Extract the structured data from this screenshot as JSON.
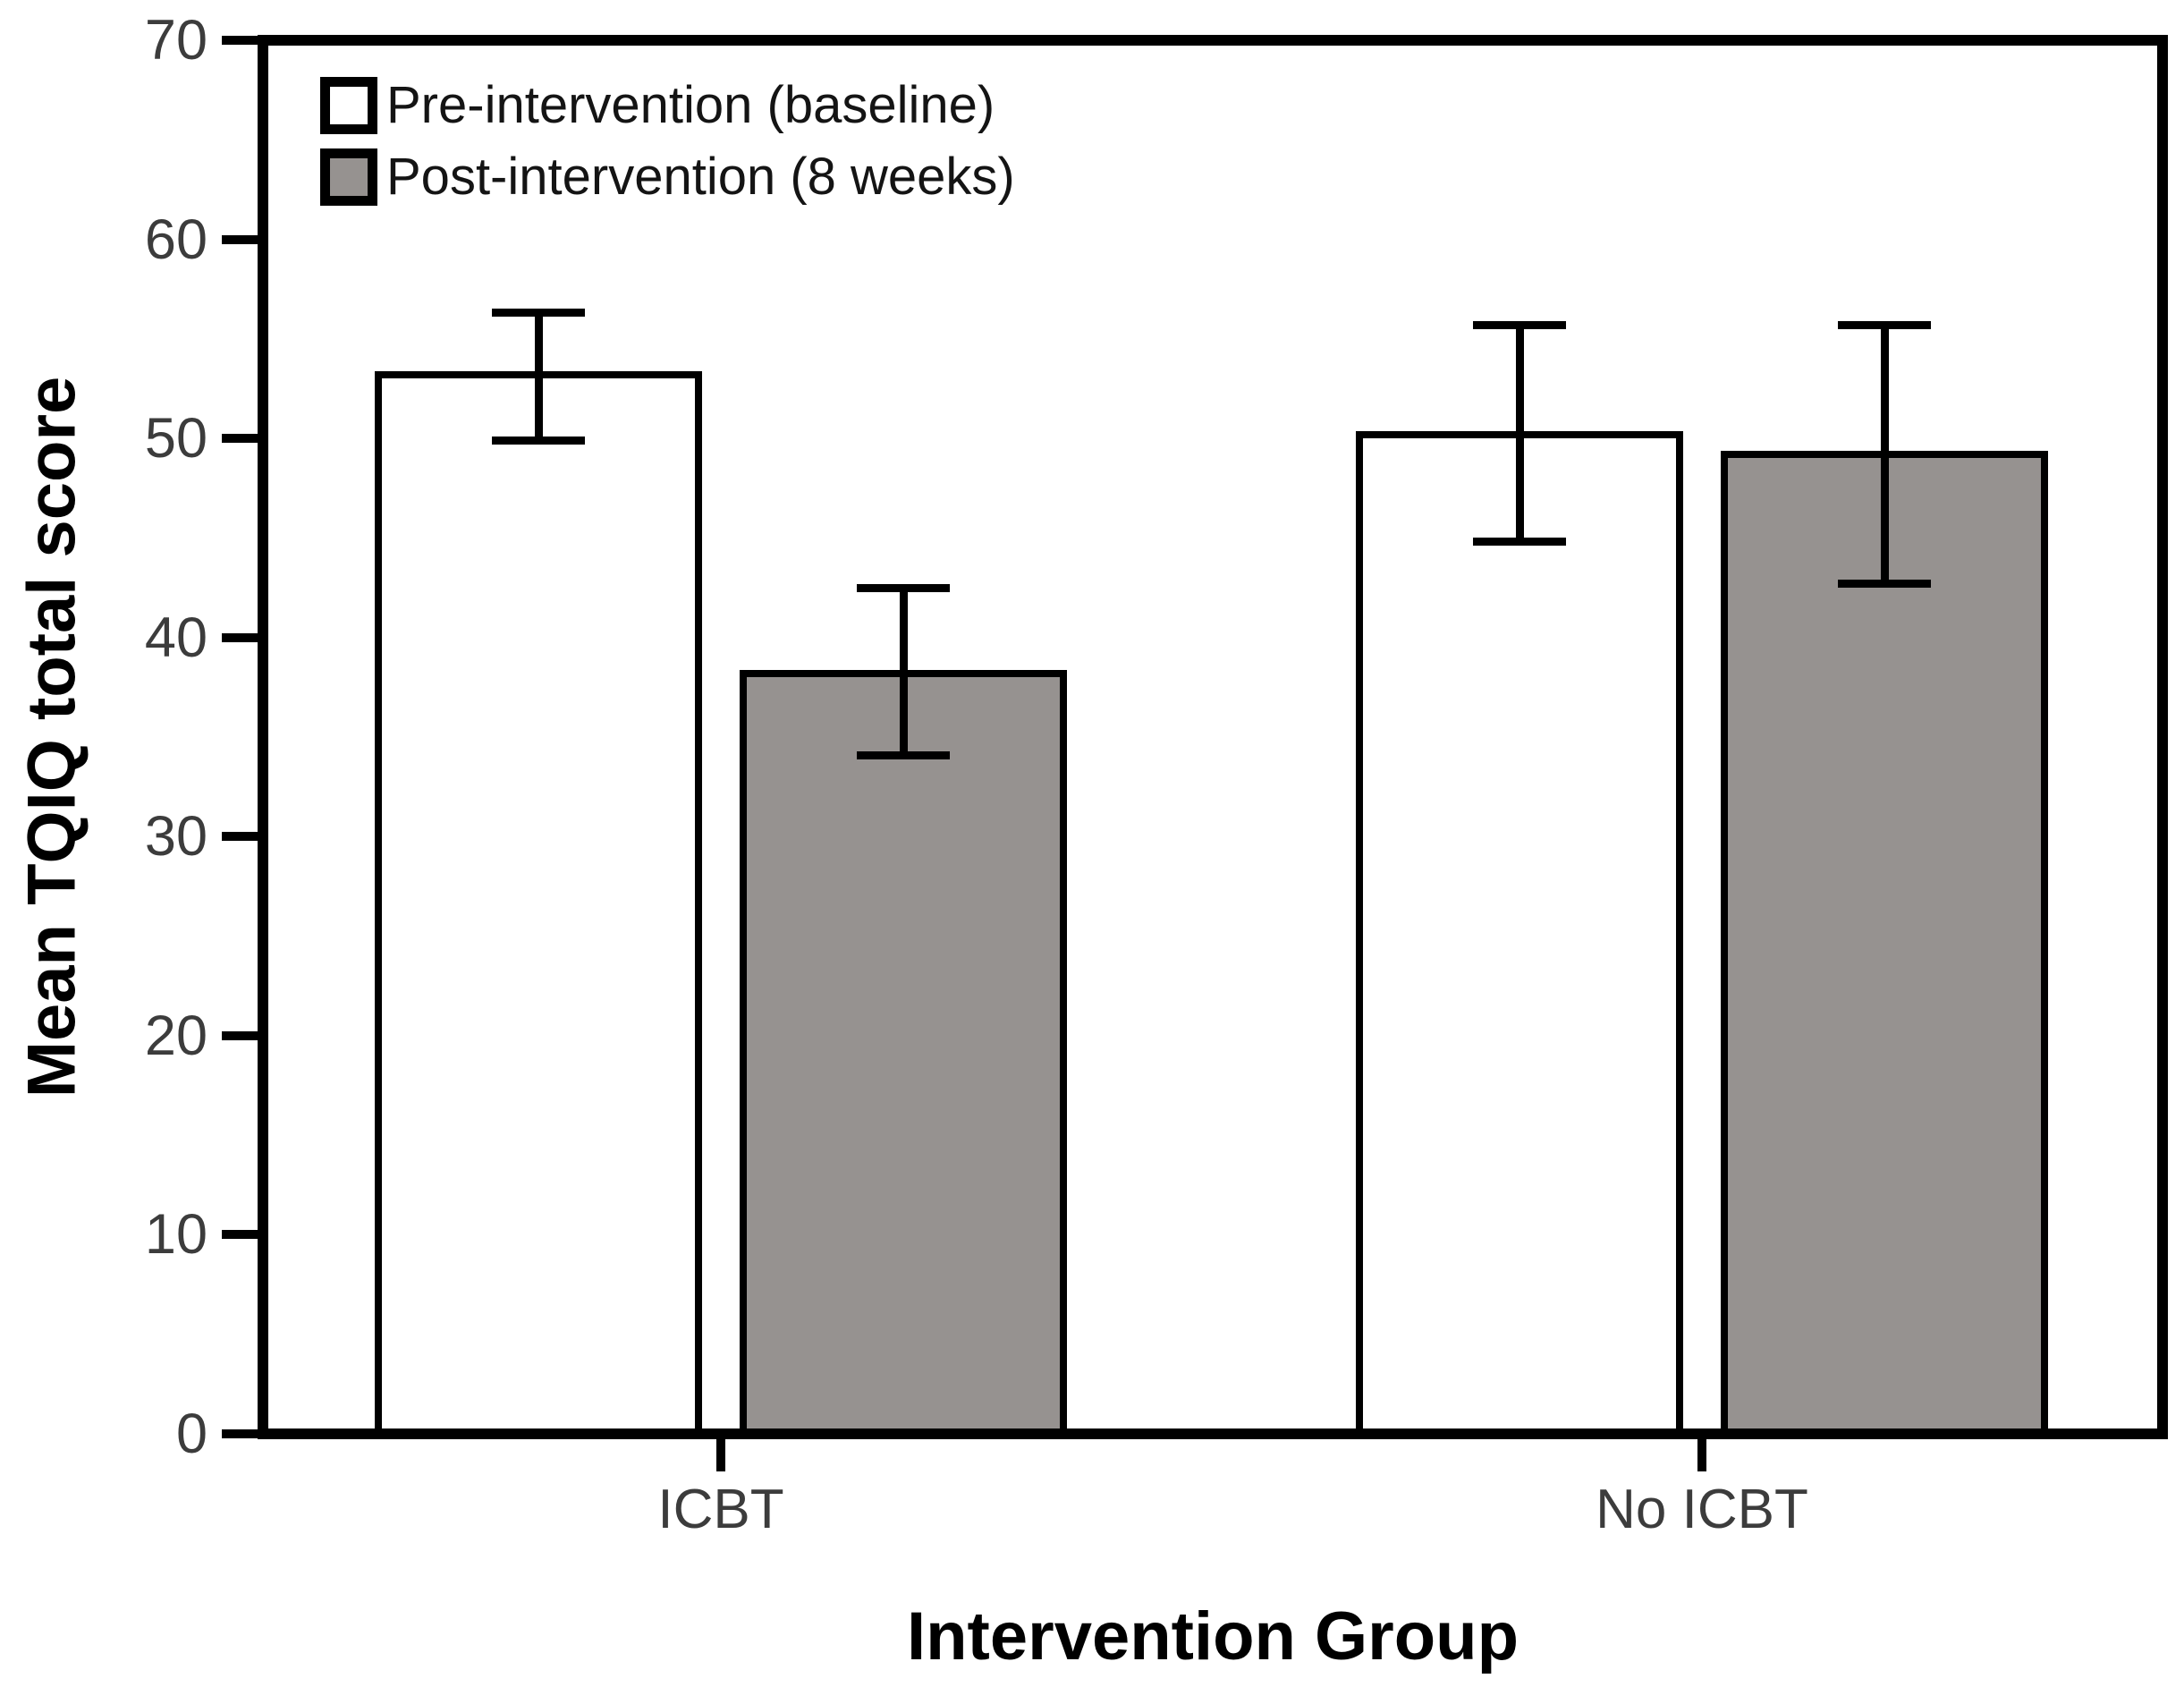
{
  "chart_data": {
    "type": "bar",
    "title": "",
    "categories": [
      "ICBT",
      "No ICBT"
    ],
    "series": [
      {
        "name": "Pre-intervention (baseline)",
        "values": [
          53.2,
          50.2
        ],
        "error_upper": [
          56.3,
          55.7
        ],
        "error_lower": [
          49.9,
          44.8
        ],
        "fill": "#ffffff"
      },
      {
        "name": "Post-intervention (8 weeks)",
        "values": [
          38.2,
          49.2
        ],
        "error_upper": [
          42.5,
          55.7
        ],
        "error_lower": [
          34.1,
          42.7
        ],
        "fill": "#969290"
      }
    ],
    "xlabel": "Intervention Group",
    "ylabel": "Mean TQIQ total score",
    "ylim": [
      0,
      70
    ],
    "yticks": [
      0,
      10,
      20,
      30,
      40,
      50,
      60,
      70
    ],
    "grid": false,
    "legend_position": "upper-left-inside",
    "bar_border_color": "#000000",
    "error_bar_color": "#000000",
    "axis_color": "#000000",
    "tick_label_color": "#3c3c3c"
  }
}
